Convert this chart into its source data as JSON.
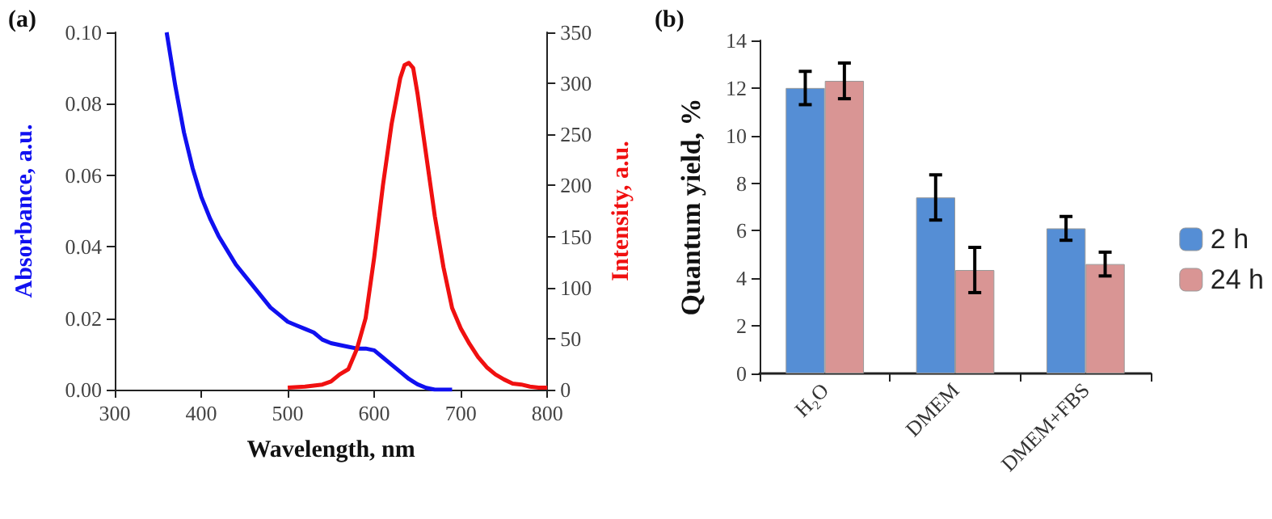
{
  "chart_data": [
    {
      "type": "line",
      "title": "(a)",
      "xlabel": "Wavelength, nm",
      "ylabel": "Absorbance, a.u.",
      "y2label": "Intensity, a.u.",
      "xlim": [
        300,
        800
      ],
      "xticks": [
        300,
        400,
        500,
        600,
        700,
        800
      ],
      "ylim": [
        0,
        0.1
      ],
      "yticks": [
        {
          "value": 0,
          "label": "0.00"
        },
        {
          "value": 0.02,
          "label": "0.02"
        },
        {
          "value": 0.04,
          "label": "0.04"
        },
        {
          "value": 0.06,
          "label": "0.06"
        },
        {
          "value": 0.08,
          "label": "0.08"
        },
        {
          "value": 0.1,
          "label": "0.10"
        }
      ],
      "y2lim": [
        0,
        350
      ],
      "y2ticks": [
        0,
        50,
        100,
        150,
        200,
        250,
        300,
        350
      ],
      "grid": false,
      "legend": false,
      "marker": "none",
      "line_style": "solid",
      "series": [
        {
          "color": "#1010f0",
          "x": [
            360,
            370,
            380,
            390,
            400,
            410,
            420,
            430,
            440,
            450,
            460,
            470,
            480,
            490,
            500,
            510,
            520,
            530,
            540,
            550,
            560,
            570,
            580,
            590,
            600,
            610,
            620,
            630,
            640,
            650,
            660,
            670,
            680,
            690
          ],
          "values": [
            0.1,
            0.085,
            0.072,
            0.062,
            0.054,
            0.048,
            0.043,
            0.039,
            0.035,
            0.032,
            0.029,
            0.026,
            0.023,
            0.021,
            0.019,
            0.018,
            0.017,
            0.016,
            0.014,
            0.013,
            0.0125,
            0.012,
            0.0115,
            0.0115,
            0.011,
            0.009,
            0.007,
            0.005,
            0.003,
            0.0015,
            0.0005,
            0,
            0,
            0
          ]
        },
        {
          "color": "#f01010",
          "axis": "y2",
          "x": [
            500,
            520,
            540,
            550,
            560,
            570,
            580,
            590,
            600,
            610,
            620,
            630,
            635,
            640,
            645,
            650,
            660,
            670,
            680,
            690,
            700,
            710,
            720,
            730,
            740,
            750,
            760,
            770,
            780,
            790,
            800
          ],
          "values": [
            2,
            3,
            5,
            8,
            15,
            20,
            40,
            70,
            130,
            200,
            260,
            305,
            318,
            320,
            315,
            290,
            230,
            170,
            120,
            80,
            60,
            45,
            32,
            22,
            15,
            10,
            6,
            5,
            3,
            2,
            2
          ]
        }
      ]
    },
    {
      "type": "bar",
      "title": "(b)",
      "ylabel": "Quantum yield, %",
      "categories": [
        "H₂O",
        "DMEM",
        "DMEM+FBS"
      ],
      "ylim": [
        0,
        14
      ],
      "yticks": [
        0,
        2,
        4,
        6,
        8,
        10,
        12,
        14
      ],
      "grid": false,
      "legend": "right",
      "series": [
        {
          "name": "2 h",
          "color": "#558ed5",
          "values": [
            12.0,
            7.4,
            6.1
          ],
          "errors": [
            0.7,
            0.95,
            0.5
          ]
        },
        {
          "name": "24 h",
          "color": "#d99594",
          "values": [
            12.3,
            4.35,
            4.6
          ],
          "errors": [
            0.75,
            0.95,
            0.5
          ]
        }
      ]
    }
  ]
}
